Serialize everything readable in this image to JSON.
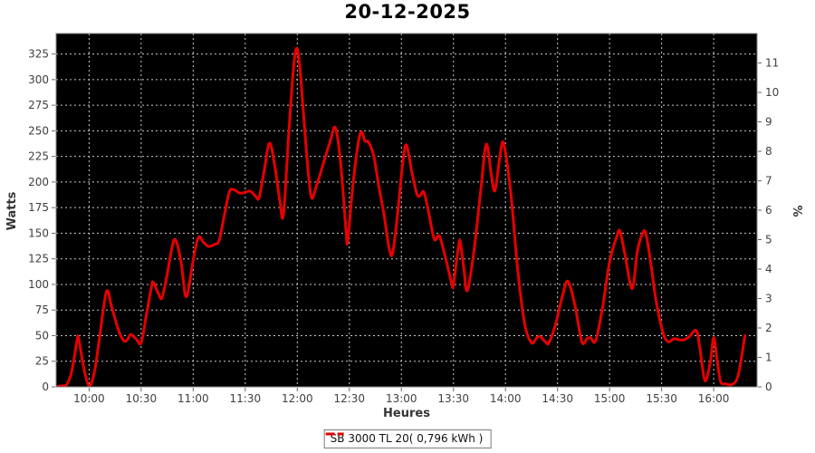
{
  "title": "20-12-2025",
  "legend": {
    "label": "SB 3000 TL 20( 0,796 kWh )"
  },
  "colors": {
    "line": "#e60000",
    "plot_bg": "#000000",
    "grid": "#c9c9c9",
    "tick_text": "#404040",
    "axis_line": "#808080",
    "tick_mark": "#666666"
  },
  "chart_data": {
    "type": "line",
    "title": "20-12-2025",
    "xlabel": "Heures",
    "ylabel_left": "Watts",
    "ylabel_right": "%",
    "grid": "dashed",
    "legend_position": "bottom-center",
    "x_range": [
      "09:41",
      "16:25"
    ],
    "y_left_range": [
      0,
      345
    ],
    "y_right_range": [
      0,
      12
    ],
    "x_ticks": [
      "10:00",
      "10:30",
      "11:00",
      "11:30",
      "12:00",
      "12:30",
      "13:00",
      "13:30",
      "14:00",
      "14:30",
      "15:00",
      "15:30",
      "16:00"
    ],
    "y_left_ticks": [
      0,
      25,
      50,
      75,
      100,
      125,
      150,
      175,
      200,
      225,
      250,
      275,
      300,
      325
    ],
    "y_right_ticks": [
      0,
      1,
      2,
      3,
      4,
      5,
      6,
      7,
      8,
      9,
      10,
      11
    ],
    "series": [
      {
        "name": "SB 3000 TL 20( 0,796 kWh )",
        "color": "#e60000",
        "points": [
          [
            "09:41",
            0
          ],
          [
            "09:44",
            1
          ],
          [
            "09:47",
            2
          ],
          [
            "09:50",
            15
          ],
          [
            "09:53",
            45
          ],
          [
            "09:54",
            47
          ],
          [
            "09:57",
            18
          ],
          [
            "10:00",
            1
          ],
          [
            "10:03",
            14
          ],
          [
            "10:06",
            48
          ],
          [
            "10:10",
            93
          ],
          [
            "10:13",
            78
          ],
          [
            "10:17",
            55
          ],
          [
            "10:20",
            45
          ],
          [
            "10:22",
            46
          ],
          [
            "10:24",
            51
          ],
          [
            "10:27",
            47
          ],
          [
            "10:30",
            43
          ],
          [
            "10:33",
            70
          ],
          [
            "10:36",
            98
          ],
          [
            "10:37",
            102
          ],
          [
            "10:40",
            91
          ],
          [
            "10:42",
            87
          ],
          [
            "10:45",
            110
          ],
          [
            "10:48",
            138
          ],
          [
            "10:50",
            143
          ],
          [
            "10:53",
            122
          ],
          [
            "10:56",
            88
          ],
          [
            "11:00",
            124
          ],
          [
            "11:03",
            146
          ],
          [
            "11:06",
            141
          ],
          [
            "11:09",
            137
          ],
          [
            "11:12",
            139
          ],
          [
            "11:15",
            143
          ],
          [
            "11:18",
            168
          ],
          [
            "11:21",
            191
          ],
          [
            "11:24",
            192
          ],
          [
            "11:27",
            189
          ],
          [
            "11:30",
            190
          ],
          [
            "11:33",
            191
          ],
          [
            "11:36",
            186
          ],
          [
            "11:38",
            185
          ],
          [
            "11:41",
            212
          ],
          [
            "11:44",
            238
          ],
          [
            "11:47",
            216
          ],
          [
            "11:50",
            181
          ],
          [
            "11:52",
            168
          ],
          [
            "11:55",
            245
          ],
          [
            "11:58",
            315
          ],
          [
            "12:00",
            330
          ],
          [
            "12:02",
            302
          ],
          [
            "12:05",
            235
          ],
          [
            "12:08",
            186
          ],
          [
            "12:11",
            196
          ],
          [
            "12:15",
            218
          ],
          [
            "12:19",
            240
          ],
          [
            "12:22",
            253
          ],
          [
            "12:25",
            218
          ],
          [
            "12:28",
            155
          ],
          [
            "12:29",
            142
          ],
          [
            "12:32",
            196
          ],
          [
            "12:35",
            237
          ],
          [
            "12:37",
            249
          ],
          [
            "12:39",
            240
          ],
          [
            "12:41",
            239
          ],
          [
            "12:44",
            226
          ],
          [
            "12:47",
            196
          ],
          [
            "12:50",
            168
          ],
          [
            "12:53",
            135
          ],
          [
            "12:55",
            131
          ],
          [
            "12:58",
            172
          ],
          [
            "13:01",
            222
          ],
          [
            "13:03",
            236
          ],
          [
            "13:06",
            210
          ],
          [
            "13:09",
            188
          ],
          [
            "13:11",
            187
          ],
          [
            "13:13",
            190
          ],
          [
            "13:16",
            168
          ],
          [
            "13:19",
            144
          ],
          [
            "13:22",
            147
          ],
          [
            "13:26",
            122
          ],
          [
            "13:29",
            101
          ],
          [
            "13:30",
            100
          ],
          [
            "13:33",
            138
          ],
          [
            "13:34",
            141
          ],
          [
            "13:36",
            116
          ],
          [
            "13:38",
            94
          ],
          [
            "13:42",
            135
          ],
          [
            "13:46",
            196
          ],
          [
            "13:49",
            237
          ],
          [
            "13:52",
            205
          ],
          [
            "13:54",
            192
          ],
          [
            "13:57",
            228
          ],
          [
            "13:59",
            237
          ],
          [
            "14:03",
            190
          ],
          [
            "14:07",
            115
          ],
          [
            "14:11",
            62
          ],
          [
            "14:15",
            43
          ],
          [
            "14:18",
            48
          ],
          [
            "14:20",
            49
          ],
          [
            "14:23",
            44
          ],
          [
            "14:25",
            43
          ],
          [
            "14:29",
            62
          ],
          [
            "14:33",
            90
          ],
          [
            "14:36",
            103
          ],
          [
            "14:40",
            80
          ],
          [
            "14:44",
            44
          ],
          [
            "14:47",
            47
          ],
          [
            "14:49",
            48
          ],
          [
            "14:52",
            45
          ],
          [
            "14:56",
            78
          ],
          [
            "15:00",
            122
          ],
          [
            "15:04",
            146
          ],
          [
            "15:06",
            152
          ],
          [
            "15:09",
            128
          ],
          [
            "15:13",
            96
          ],
          [
            "15:16",
            132
          ],
          [
            "15:19",
            150
          ],
          [
            "15:21",
            149
          ],
          [
            "15:24",
            118
          ],
          [
            "15:27",
            82
          ],
          [
            "15:31",
            52
          ],
          [
            "15:34",
            44
          ],
          [
            "15:37",
            47
          ],
          [
            "15:40",
            46
          ],
          [
            "15:43",
            46
          ],
          [
            "15:46",
            49
          ],
          [
            "15:50",
            55
          ],
          [
            "15:52",
            38
          ],
          [
            "15:55",
            6
          ],
          [
            "15:58",
            24
          ],
          [
            "16:00",
            48
          ],
          [
            "16:02",
            26
          ],
          [
            "16:04",
            5
          ],
          [
            "16:07",
            3
          ],
          [
            "16:10",
            2
          ],
          [
            "16:13",
            6
          ],
          [
            "16:15",
            18
          ],
          [
            "16:18",
            50
          ]
        ]
      }
    ]
  }
}
